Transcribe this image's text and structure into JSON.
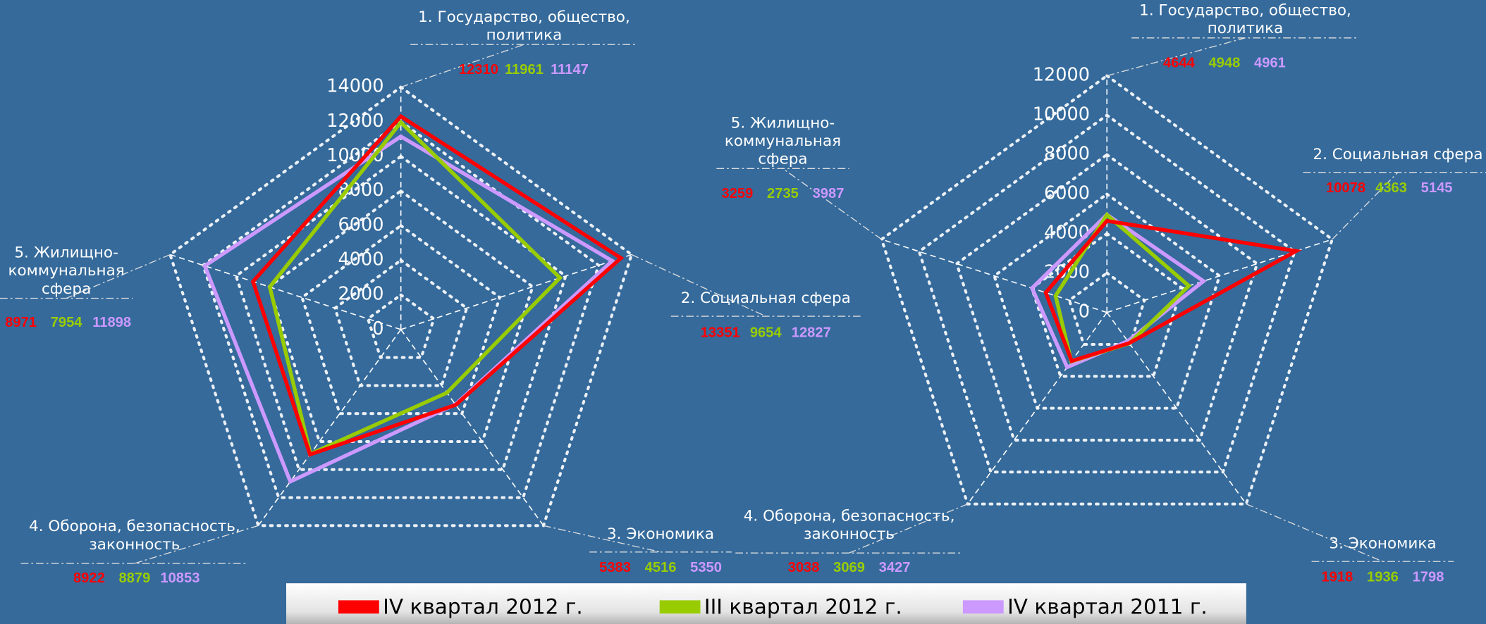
{
  "chart_data": [
    {
      "type": "radar",
      "categories": [
        "1. Государство, общество, политика",
        "2. Социальная сфера",
        "3. Экономика",
        "4. Оборона, безопасность, законность",
        "5. Жилищно-коммунальная сфера"
      ],
      "ylim": [
        0,
        14000
      ],
      "yticks": [
        0,
        2000,
        4000,
        6000,
        8000,
        10000,
        12000,
        14000
      ],
      "series": [
        {
          "name": "IV квартал 2012 г.",
          "color": "#ff0000",
          "values": [
            12310,
            13351,
            5383,
            8922,
            8971
          ]
        },
        {
          "name": "III квартал 2012 г.",
          "color": "#99cc00",
          "values": [
            11961,
            9654,
            4516,
            8879,
            7954
          ]
        },
        {
          "name": "IV квартал 2011 г.",
          "color": "#cc99ff",
          "values": [
            11147,
            12827,
            5350,
            10853,
            11898
          ]
        }
      ]
    },
    {
      "type": "radar",
      "categories": [
        "1. Государство, общество, политика",
        "2. Социальная сфера",
        "3. Экономика",
        "4. Оборона, безопасность, законность",
        "5. Жилищно-коммунальная сфера"
      ],
      "ylim": [
        0,
        12000
      ],
      "yticks": [
        0,
        2000,
        4000,
        6000,
        8000,
        10000,
        12000
      ],
      "series": [
        {
          "color": "#ff0000",
          "values": [
            4644,
            10078,
            1918,
            3038,
            3259
          ]
        },
        {
          "color": "#99cc00",
          "values": [
            4948,
            4363,
            1936,
            3069,
            2735
          ]
        },
        {
          "color": "#cc99ff",
          "values": [
            4961,
            5145,
            1798,
            3427,
            3987
          ]
        }
      ]
    }
  ]
}
